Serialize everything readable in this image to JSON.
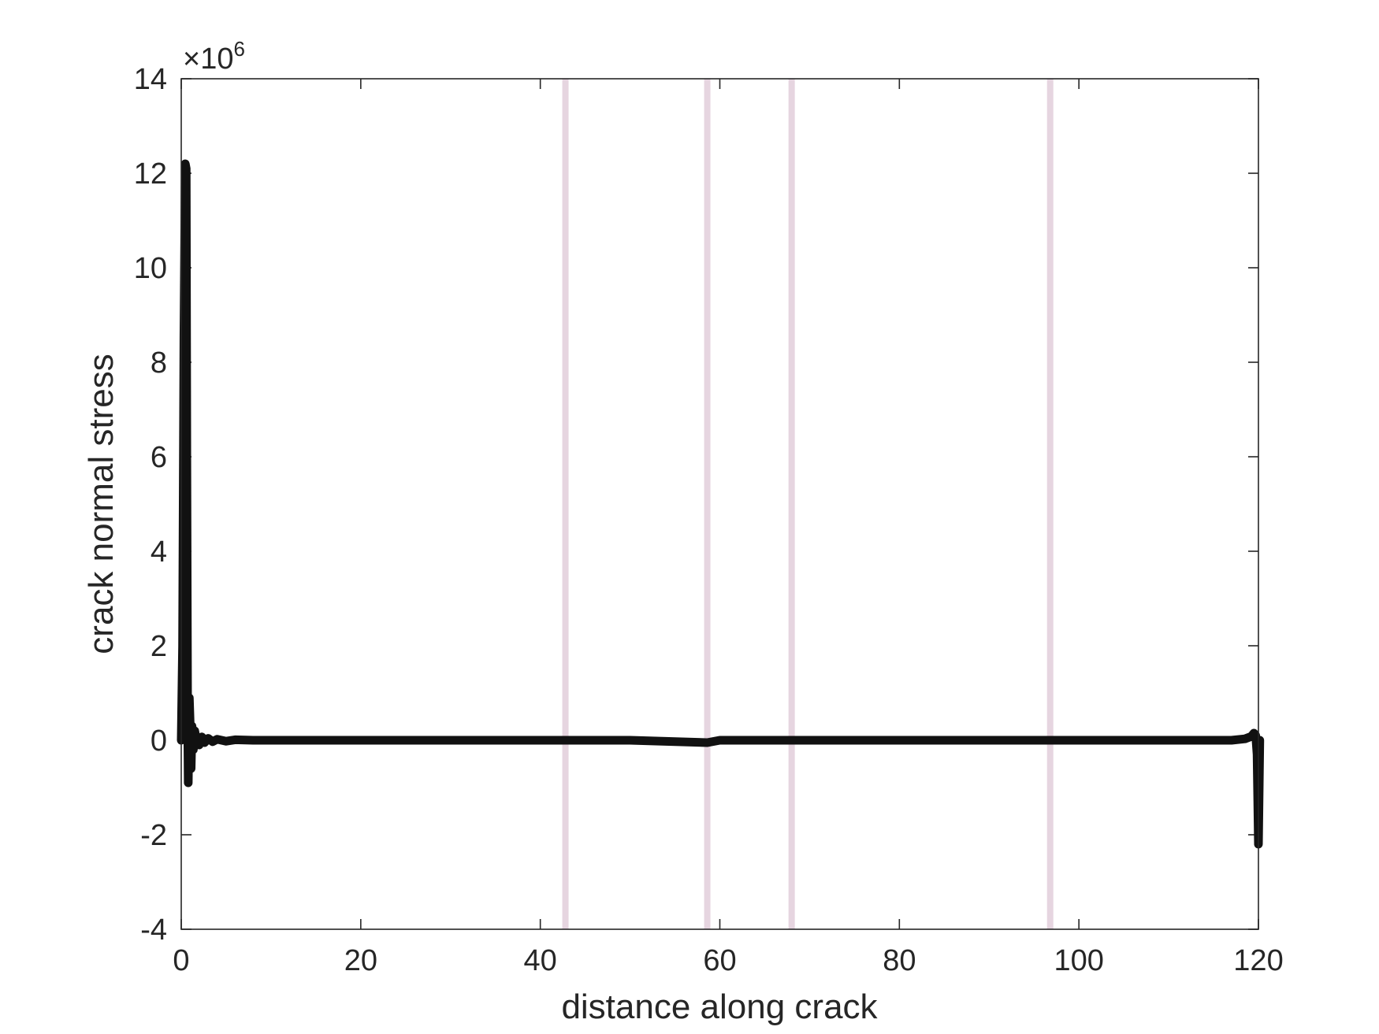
{
  "chart_data": {
    "type": "line",
    "title": "",
    "xlabel": "distance along crack",
    "ylabel": "crack normal stress",
    "y_exponent_label": "×10",
    "y_exponent_power": "6",
    "y_multiplier": 1000000,
    "xlim": [
      0,
      120
    ],
    "ylim": [
      -4,
      14
    ],
    "x_ticks": [
      0,
      20,
      40,
      60,
      80,
      100,
      120
    ],
    "y_ticks": [
      -4,
      -2,
      0,
      2,
      4,
      6,
      8,
      10,
      12,
      14
    ],
    "x_tick_labels": [
      "0",
      "20",
      "40",
      "60",
      "80",
      "100",
      "120"
    ],
    "y_tick_labels": [
      "-4",
      "-2",
      "0",
      "2",
      "4",
      "6",
      "8",
      "10",
      "12",
      "14"
    ],
    "grid": false,
    "vertical_markers": {
      "color": "#e6d5e0",
      "x": [
        42.8,
        58.6,
        68.0,
        96.8
      ]
    },
    "series": [
      {
        "color": "#111111",
        "x": [
          0,
          0.15,
          0.3,
          0.45,
          0.55,
          0.62,
          0.7,
          0.78,
          0.9,
          1.0,
          1.1,
          1.2,
          1.35,
          1.5,
          1.7,
          2.0,
          2.3,
          2.6,
          3.0,
          3.5,
          4.0,
          5.0,
          6.0,
          8.0,
          10,
          20,
          30,
          40,
          50,
          58.6,
          60,
          70,
          80,
          90,
          100,
          110,
          117,
          118.5,
          119.2,
          119.5,
          119.7,
          119.85,
          120.0,
          120.15
        ],
        "y": [
          0,
          2.0,
          8.5,
          12.2,
          12.1,
          6.0,
          1.0,
          -0.9,
          0.9,
          0.3,
          -0.6,
          0.3,
          -0.2,
          0.2,
          0.0,
          -0.1,
          0.07,
          -0.05,
          0.04,
          -0.03,
          0.02,
          -0.02,
          0.01,
          0.0,
          0.0,
          0.0,
          0.0,
          0.0,
          0.0,
          -0.05,
          0.0,
          0.0,
          0.0,
          0.0,
          0.0,
          0.0,
          0.0,
          0.03,
          0.08,
          0.15,
          0.1,
          -0.3,
          -2.2,
          0.0
        ]
      }
    ]
  }
}
